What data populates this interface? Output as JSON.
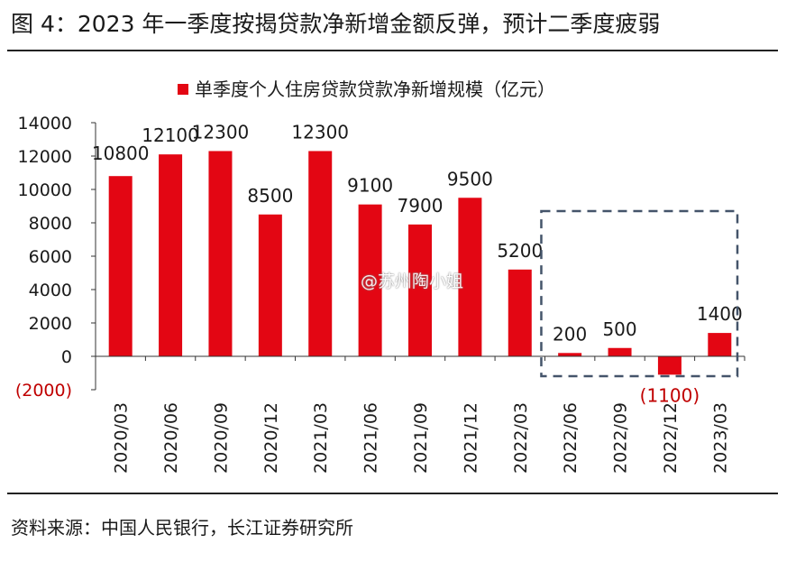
{
  "figure": {
    "title": "图 4：2023 年一季度按揭贷款净新增金额反弹，预计二季度疲弱",
    "source": "资料来源：中国人民银行，长江证券研究所",
    "watermark": "@苏州陶小姐"
  },
  "chart_data": {
    "type": "bar",
    "title": "",
    "xlabel": "",
    "ylabel": "",
    "ylim": [
      -2000,
      14000
    ],
    "yticks": [
      -2000,
      0,
      2000,
      4000,
      6000,
      8000,
      10000,
      12000,
      14000
    ],
    "ytick_labels": [
      "(2000)",
      "0",
      "2000",
      "4000",
      "6000",
      "8000",
      "10000",
      "12000",
      "14000"
    ],
    "grid": false,
    "legend_position": "top-center",
    "categories": [
      "2020/03",
      "2020/06",
      "2020/09",
      "2020/12",
      "2021/03",
      "2021/06",
      "2021/09",
      "2021/12",
      "2022/03",
      "2022/06",
      "2022/09",
      "2022/12",
      "2023/03"
    ],
    "series": [
      {
        "name": "单季度个人住房贷款贷款净新增规模（亿元）",
        "color": "#e30613",
        "values": [
          10800,
          12100,
          12300,
          8500,
          12300,
          9100,
          7900,
          9500,
          5200,
          200,
          500,
          -1100,
          1400
        ],
        "data_labels": [
          "10800",
          "12100",
          "12300",
          "8500",
          "12300",
          "9100",
          "7900",
          "9500",
          "5200",
          "200",
          "500",
          "(1100)",
          "1400"
        ]
      }
    ],
    "highlight": {
      "from": "2022/06",
      "to": "2023/03",
      "style": "dashed-box",
      "color": "#44546a"
    },
    "negative_label_color": "#c00000",
    "text_color": "#1a1a1a"
  }
}
